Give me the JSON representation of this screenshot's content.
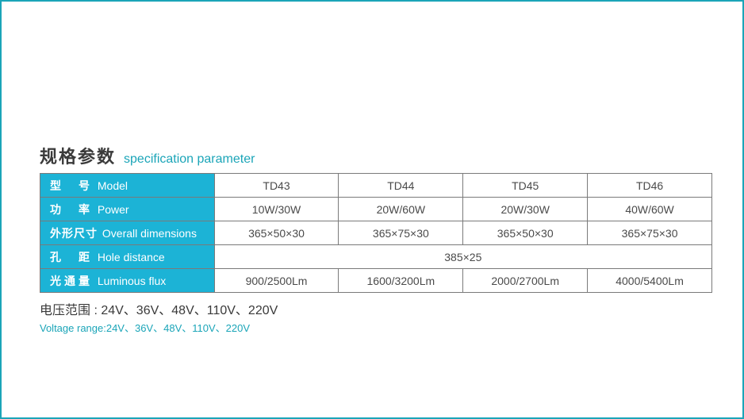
{
  "title": {
    "cn": "规格参数",
    "en": "specification parameter"
  },
  "colors": {
    "border": "#1ba5b8",
    "header_bg": "#1cb3d6",
    "header_text": "#ffffff",
    "cell_border": "#7a7a7a",
    "text": "#4a4a4a",
    "accent": "#1ba5b8"
  },
  "table": {
    "rows": [
      {
        "label_cn": "型　号",
        "label_en": "Model",
        "cells": [
          "TD43",
          "TD44",
          "TD45",
          "TD46"
        ]
      },
      {
        "label_cn": "功　率",
        "label_en": "Power",
        "cells": [
          "10W/30W",
          "20W/60W",
          "20W/30W",
          "40W/60W"
        ]
      },
      {
        "label_cn": "外形尺寸",
        "label_en": "Overall dimensions",
        "cells": [
          "365×50×30",
          "365×75×30",
          "365×50×30",
          "365×75×30"
        ]
      },
      {
        "label_cn": "孔　距",
        "label_en": "Hole distance",
        "merged": "385×25"
      },
      {
        "label_cn": "光通量",
        "label_en": "Luminous flux",
        "cells": [
          "900/2500Lm",
          "1600/3200Lm",
          "2000/2700Lm",
          "4000/5400Lm"
        ]
      }
    ]
  },
  "footer": {
    "cn": "电压范围 : 24V、36V、48V、110V、220V",
    "en": "Voltage range:24V、36V、48V、110V、220V"
  }
}
